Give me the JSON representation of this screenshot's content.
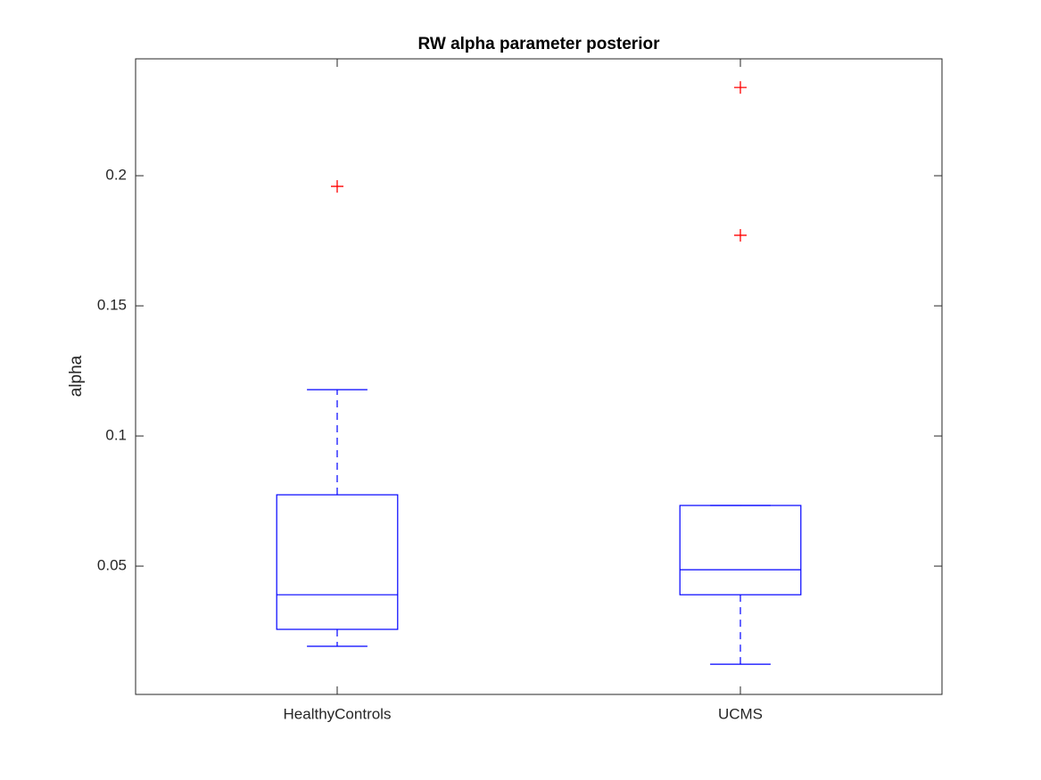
{
  "chart_data": {
    "type": "box",
    "title": "RW alpha parameter posterior",
    "y_label": "alpha",
    "categories": [
      "HealthyControls",
      "UCMS"
    ],
    "boxes": [
      {
        "whisker_low": 0.0192,
        "q1": 0.0257,
        "median": 0.039,
        "q3": 0.0774,
        "whisker_high": 0.1178,
        "outliers": [
          0.1959
        ]
      },
      {
        "whisker_low": 0.0123,
        "q1": 0.039,
        "median": 0.0486,
        "q3": 0.0733,
        "whisker_high": 0.0733,
        "outliers": [
          0.2339,
          0.1771
        ]
      }
    ],
    "color": "#0000ff",
    "outlier_color": "#ff0000",
    "ylim": [
      0.0007,
      0.2449
    ],
    "yticks": [
      0.05,
      0.1,
      0.15,
      0.2
    ],
    "grid": false
  }
}
